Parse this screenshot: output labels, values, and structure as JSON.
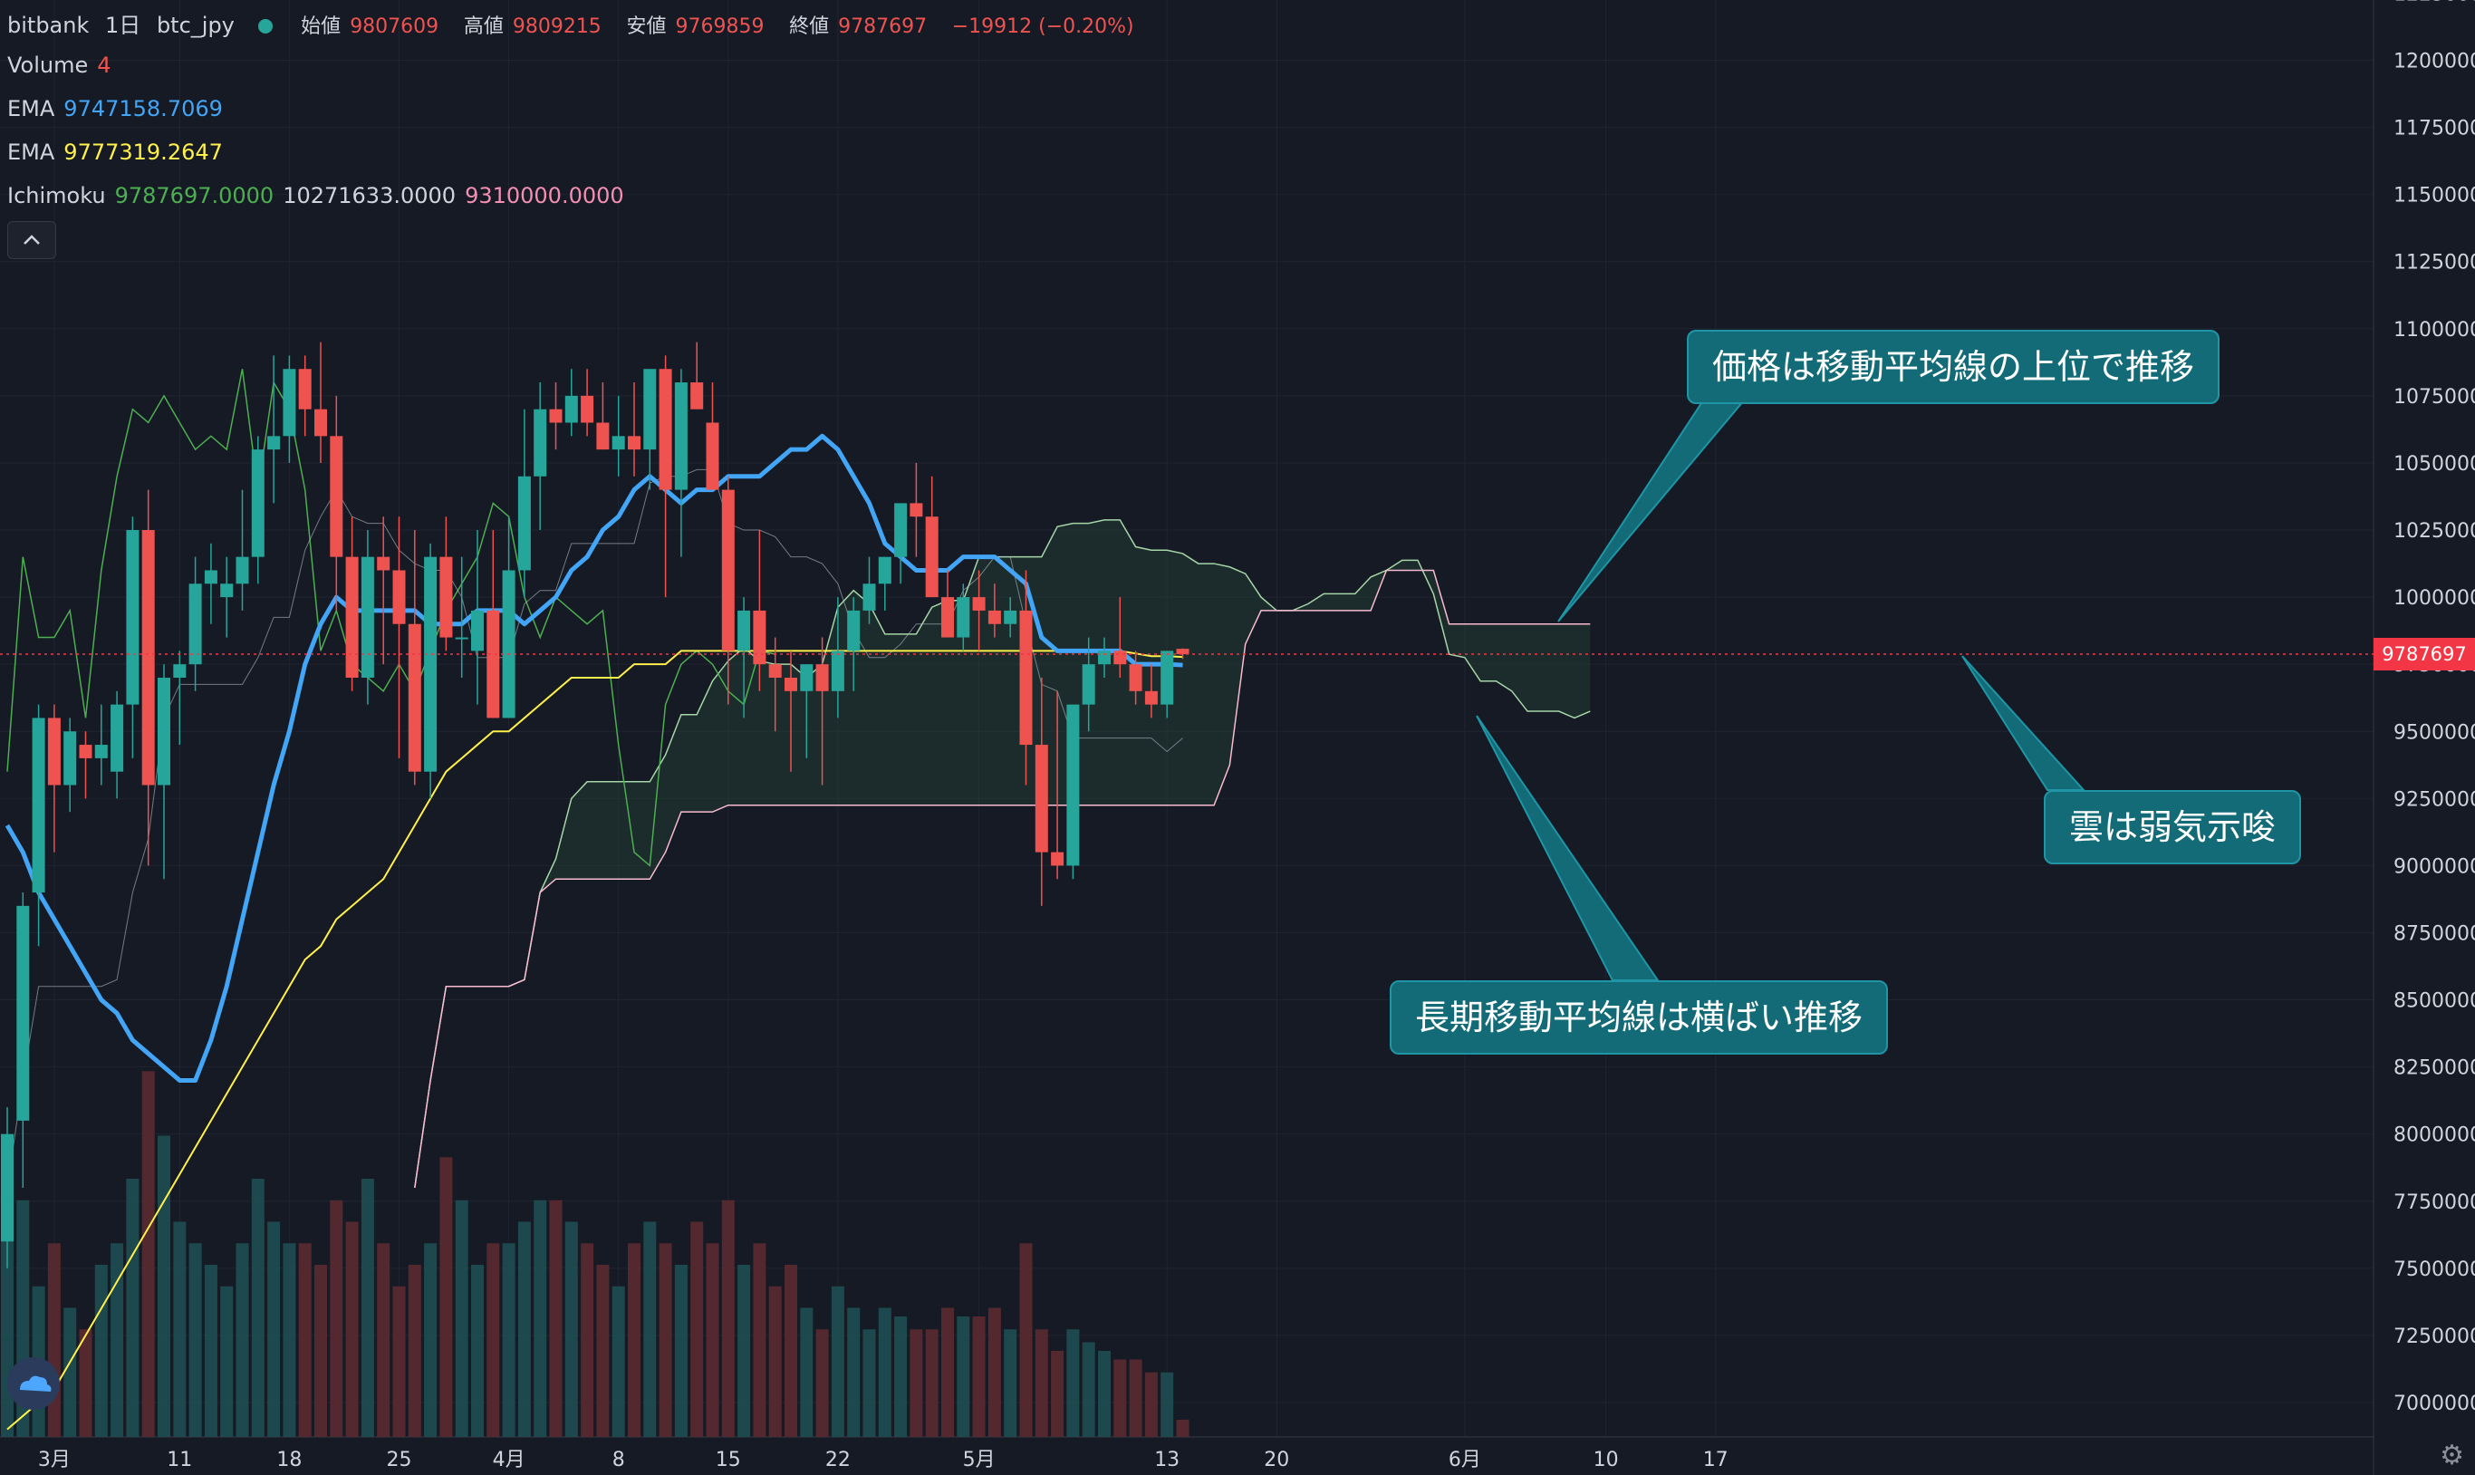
{
  "header": {
    "exchange": "bitbank",
    "interval": "1日",
    "symbol": "btc_jpy",
    "ohlc": [
      {
        "label": "始値",
        "value": "9807609"
      },
      {
        "label": "高値",
        "value": "9809215"
      },
      {
        "label": "安値",
        "value": "9769859"
      },
      {
        "label": "終値",
        "value": "9787697"
      }
    ],
    "change": "−19912 (−0.20%)"
  },
  "indicators": {
    "volume": {
      "name": "Volume",
      "value": "4"
    },
    "ema_fast": {
      "name": "EMA",
      "value": "9747158.7069"
    },
    "ema_slow": {
      "name": "EMA",
      "value": "9777319.2647"
    },
    "ichimoku": {
      "name": "Ichimoku",
      "values": [
        "9787697.0000",
        "10271633.0000",
        "9310000.0000"
      ]
    }
  },
  "current_price_label": "9787697",
  "annotations": [
    {
      "text": "価格は移動平均線の上位で推移"
    },
    {
      "text": "長期移動平均線は横ばい推移"
    },
    {
      "text": "雲は弱気示唆"
    }
  ],
  "colors": {
    "background": "#161a25",
    "up": "#26a69a",
    "down": "#ef5350",
    "ema_fast": "#42a5f5",
    "ema_slow": "#fff04a",
    "lagging_span": "#4caf50",
    "span_a": "#a5d6a7",
    "span_b": "#f8bbd0",
    "callout": "#136b78"
  },
  "chart_data": {
    "type": "candlestick",
    "y_axis_ticks": [
      12250000,
      12000000,
      11750000,
      11500000,
      11250000,
      11000000,
      10750000,
      10500000,
      10250000,
      10000000,
      9750000,
      9500000,
      9250000,
      9000000,
      8750000,
      8500000,
      8250000,
      8000000,
      7750000,
      7500000,
      7250000,
      7000000
    ],
    "y_axis_labels": [
      "12250000",
      "12000000",
      "11750000",
      "11500000",
      "11250000",
      "11000000",
      "10750000",
      "10500000",
      "10250000",
      "10000000",
      "9750000",
      "9500000",
      "9250000",
      "9000000",
      "8750000",
      "8500000",
      "8250000",
      "8000000",
      "7750000",
      "7500000",
      "7250000",
      "7000000"
    ],
    "x_axis_labels": [
      {
        "label": "3月",
        "bar": 3
      },
      {
        "label": "11",
        "bar": 11
      },
      {
        "label": "18",
        "bar": 18
      },
      {
        "label": "25",
        "bar": 25
      },
      {
        "label": "4月",
        "bar": 32
      },
      {
        "label": "8",
        "bar": 39
      },
      {
        "label": "15",
        "bar": 46
      },
      {
        "label": "22",
        "bar": 53
      },
      {
        "label": "5月",
        "bar": 62
      },
      {
        "label": "13",
        "bar": 74
      },
      {
        "label": "20",
        "bar": 81
      },
      {
        "label": "6月",
        "bar": 93
      },
      {
        "label": "10",
        "bar": 102
      },
      {
        "label": "17",
        "bar": 109
      }
    ],
    "candles_ohlc": [
      [
        7600000,
        8100000,
        7500000,
        8000000
      ],
      [
        8050000,
        8900000,
        7800000,
        8850000
      ],
      [
        8900000,
        9600000,
        8700000,
        9550000
      ],
      [
        9550000,
        9600000,
        9050000,
        9300000
      ],
      [
        9300000,
        9550000,
        9200000,
        9500000
      ],
      [
        9450000,
        9500000,
        9250000,
        9400000
      ],
      [
        9400000,
        9600000,
        9300000,
        9450000
      ],
      [
        9350000,
        9650000,
        9250000,
        9600000
      ],
      [
        9600000,
        10300000,
        9400000,
        10250000
      ],
      [
        10250000,
        10400000,
        9000000,
        9300000
      ],
      [
        9300000,
        9750000,
        8950000,
        9700000
      ],
      [
        9700000,
        9800000,
        9450000,
        9750000
      ],
      [
        9750000,
        10150000,
        9650000,
        10050000
      ],
      [
        10050000,
        10200000,
        9900000,
        10100000
      ],
      [
        10000000,
        10150000,
        9850000,
        10050000
      ],
      [
        10050000,
        10400000,
        9950000,
        10150000
      ],
      [
        10150000,
        10600000,
        10050000,
        10550000
      ],
      [
        10550000,
        10900000,
        10350000,
        10600000
      ],
      [
        10600000,
        10900000,
        10500000,
        10850000
      ],
      [
        10850000,
        10900000,
        10600000,
        10700000
      ],
      [
        10700000,
        10950000,
        10500000,
        10600000
      ],
      [
        10600000,
        10750000,
        9950000,
        10150000
      ],
      [
        10150000,
        10300000,
        9650000,
        9700000
      ],
      [
        9700000,
        10250000,
        9600000,
        10150000
      ],
      [
        10150000,
        10300000,
        9750000,
        10100000
      ],
      [
        10100000,
        10300000,
        9400000,
        9900000
      ],
      [
        9900000,
        10250000,
        9300000,
        9350000
      ],
      [
        9350000,
        10200000,
        9250000,
        10150000
      ],
      [
        10150000,
        10300000,
        9800000,
        9850000
      ],
      [
        9850000,
        10150000,
        9700000,
        9850000
      ],
      [
        9800000,
        10250000,
        9600000,
        9950000
      ],
      [
        9950000,
        10250000,
        9550000,
        9550000
      ],
      [
        9550000,
        10300000,
        9550000,
        10100000
      ],
      [
        10100000,
        10700000,
        10000000,
        10450000
      ],
      [
        10450000,
        10800000,
        10250000,
        10700000
      ],
      [
        10700000,
        10800000,
        10550000,
        10650000
      ],
      [
        10650000,
        10850000,
        10600000,
        10750000
      ],
      [
        10750000,
        10850000,
        10600000,
        10650000
      ],
      [
        10650000,
        10800000,
        10550000,
        10550000
      ],
      [
        10550000,
        10750000,
        10450000,
        10600000
      ],
      [
        10600000,
        10800000,
        10450000,
        10550000
      ],
      [
        10550000,
        10850000,
        10400000,
        10850000
      ],
      [
        10850000,
        10900000,
        10000000,
        10400000
      ],
      [
        10400000,
        10850000,
        10150000,
        10800000
      ],
      [
        10800000,
        10950000,
        10700000,
        10700000
      ],
      [
        10650000,
        10800000,
        10450000,
        10400000
      ],
      [
        10400000,
        10450000,
        9600000,
        9800000
      ],
      [
        9800000,
        10000000,
        9550000,
        9950000
      ],
      [
        9950000,
        10250000,
        9650000,
        9750000
      ],
      [
        9750000,
        9850000,
        9500000,
        9700000
      ],
      [
        9700000,
        9800000,
        9350000,
        9650000
      ],
      [
        9650000,
        9750000,
        9400000,
        9750000
      ],
      [
        9750000,
        9850000,
        9300000,
        9650000
      ],
      [
        9650000,
        10000000,
        9550000,
        9800000
      ],
      [
        9800000,
        10000000,
        9650000,
        9950000
      ],
      [
        9950000,
        10150000,
        9900000,
        10050000
      ],
      [
        10050000,
        10150000,
        9950000,
        10150000
      ],
      [
        10150000,
        10350000,
        10050000,
        10350000
      ],
      [
        10350000,
        10500000,
        10150000,
        10300000
      ],
      [
        10300000,
        10450000,
        10000000,
        10000000
      ],
      [
        10000000,
        10100000,
        9850000,
        9850000
      ],
      [
        9850000,
        10050000,
        9800000,
        10000000
      ],
      [
        10000000,
        10100000,
        9800000,
        9950000
      ],
      [
        9950000,
        10050000,
        9850000,
        9900000
      ],
      [
        9900000,
        10000000,
        9850000,
        9950000
      ],
      [
        9950000,
        10100000,
        9300000,
        9450000
      ],
      [
        9450000,
        9700000,
        8850000,
        9050000
      ],
      [
        9050000,
        9650000,
        8950000,
        9000000
      ],
      [
        9000000,
        9600000,
        8950000,
        9600000
      ],
      [
        9600000,
        9850000,
        9500000,
        9750000
      ],
      [
        9750000,
        9850000,
        9700000,
        9800000
      ],
      [
        9800000,
        10000000,
        9700000,
        9750000
      ],
      [
        9750000,
        9800000,
        9600000,
        9650000
      ],
      [
        9650000,
        9750000,
        9550000,
        9600000
      ],
      [
        9600000,
        9800000,
        9550000,
        9800000
      ],
      [
        9807609,
        9809215,
        9769859,
        9787697
      ]
    ],
    "volume_scale_max": 80,
    "volumes": [
      70,
      55,
      35,
      45,
      30,
      25,
      40,
      45,
      60,
      85,
      70,
      50,
      45,
      40,
      35,
      45,
      60,
      50,
      45,
      45,
      40,
      55,
      50,
      60,
      45,
      35,
      40,
      45,
      65,
      55,
      40,
      45,
      45,
      50,
      55,
      55,
      50,
      45,
      40,
      35,
      45,
      50,
      45,
      40,
      50,
      45,
      55,
      40,
      45,
      35,
      40,
      30,
      25,
      35,
      30,
      25,
      30,
      28,
      25,
      25,
      30,
      28,
      28,
      30,
      25,
      45,
      25,
      20,
      25,
      22,
      20,
      18,
      18,
      15,
      15,
      4
    ],
    "ema_fast": [
      9150000,
      9050000,
      8900000,
      8800000,
      8700000,
      8600000,
      8500000,
      8450000,
      8350000,
      8300000,
      8250000,
      8200000,
      8200000,
      8350000,
      8550000,
      8800000,
      9050000,
      9300000,
      9500000,
      9750000,
      9900000,
      10000000,
      9950000,
      9950000,
      9950000,
      9950000,
      9950000,
      9900000,
      9900000,
      9900000,
      9950000,
      9950000,
      9950000,
      9900000,
      9950000,
      10000000,
      10100000,
      10150000,
      10250000,
      10300000,
      10400000,
      10450000,
      10400000,
      10350000,
      10400000,
      10400000,
      10450000,
      10450000,
      10450000,
      10500000,
      10550000,
      10550000,
      10600000,
      10550000,
      10450000,
      10350000,
      10200000,
      10150000,
      10100000,
      10100000,
      10100000,
      10150000,
      10150000,
      10150000,
      10100000,
      10050000,
      9850000,
      9800000,
      9800000,
      9800000,
      9800000,
      9800000,
      9750000,
      9750000,
      9750000,
      9747000
    ],
    "ema_slow": [
      6900000,
      6950000,
      7000000,
      7050000,
      7150000,
      7250000,
      7350000,
      7450000,
      7550000,
      7650000,
      7750000,
      7850000,
      7950000,
      8050000,
      8150000,
      8250000,
      8350000,
      8450000,
      8550000,
      8650000,
      8700000,
      8800000,
      8850000,
      8900000,
      8950000,
      9050000,
      9150000,
      9250000,
      9350000,
      9400000,
      9450000,
      9500000,
      9500000,
      9550000,
      9600000,
      9650000,
      9700000,
      9700000,
      9700000,
      9700000,
      9750000,
      9750000,
      9750000,
      9800000,
      9800000,
      9800000,
      9800000,
      9800000,
      9800000,
      9800000,
      9800000,
      9800000,
      9800000,
      9800000,
      9800000,
      9800000,
      9800000,
      9800000,
      9800000,
      9800000,
      9800000,
      9800000,
      9800000,
      9800000,
      9800000,
      9800000,
      9800000,
      9800000,
      9800000,
      9800000,
      9800000,
      9800000,
      9790000,
      9780000,
      9780000,
      9777000
    ]
  }
}
